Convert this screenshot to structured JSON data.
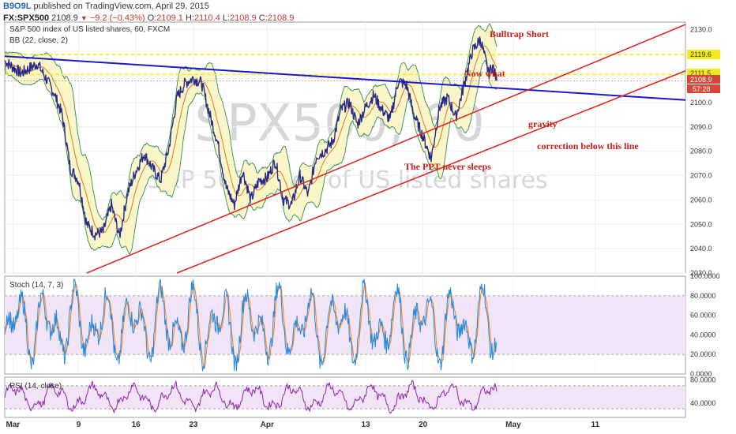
{
  "header": {
    "user": "B9O9L",
    "published": "published on TradingView.com, April 29, 2015",
    "symbol": "FX:SPX500",
    "last": "2108.9",
    "change": "−9.2 (−0.43%)",
    "o_label": "O:",
    "o_value": "2109.1",
    "h_label": "H:",
    "h_value": "2110.4",
    "l_label": "L:",
    "l_value": "2108.9",
    "c_label": "C:",
    "c_value": "2108.9"
  },
  "panels": {
    "main_title": "S&P 500 index of US listed shares, 60, FXCM",
    "bb_title": "BB (22, close, 2)",
    "stoch_title": "Stoch (14, 7, 3)",
    "rsi_title": "RSI (14, close)"
  },
  "watermark": {
    "symbol": "SPX500, 60",
    "description": "S&P 500 index of US listed shares"
  },
  "annotations": {
    "bulltrap": "Bulltrap Short",
    "now_what": "Now what",
    "gravity": "gravity",
    "correction": "correction below this line",
    "ppt": "The PPT never sleeps"
  },
  "price_labels": {
    "level_high": "2119.6",
    "level_mid": "2111.5",
    "last": "2108.9",
    "countdown": "57:28"
  },
  "colors": {
    "price": "#2a2a8a",
    "bb_band": "#2e8b57",
    "bb_fill": "#fbf6c8",
    "bb_basis": "#d2691e",
    "trendline_blue": "#1a1acc",
    "trendline_red": "#e0201a",
    "level_yellow": "#f2ea1a",
    "stoch_k": "#1e88e5",
    "stoch_d": "#ff7f0e",
    "osc_fill": "#f1e4f6",
    "rsi": "#8e24aa",
    "annotation": "#cc1f1a"
  },
  "chart_data": [
    {
      "type": "line",
      "title": "S&P 500 index of US listed shares, 60, FXCM",
      "x_ticks": [
        "Mar",
        "9",
        "16",
        "23",
        "Apr",
        "13",
        "20",
        "May",
        "11"
      ],
      "x_tick_days": [
        1,
        9,
        16,
        23,
        32,
        44,
        51,
        62,
        72
      ],
      "x_range_days": [
        0,
        83
      ],
      "ylim": [
        2030,
        2133
      ],
      "y_ticks": [
        2030,
        2040,
        2050,
        2060,
        2070,
        2080,
        2090,
        2100,
        2110,
        2120,
        2130
      ],
      "y_tick_labels": [
        "2030.0",
        "2040.0",
        "2050.0",
        "2060.0",
        "2070.0",
        "2080.0",
        "2090.0",
        "2100.0",
        "2110.0",
        "2120.0",
        "2130.0"
      ],
      "series": [
        {
          "role": "close",
          "x": [
            0,
            2,
            4,
            6,
            7,
            8,
            9,
            10,
            11,
            12,
            13,
            14,
            15,
            16,
            17,
            18,
            19,
            20,
            21,
            22,
            23,
            24,
            25,
            26,
            27,
            28,
            29,
            30,
            31,
            32,
            33,
            34,
            35,
            36,
            37,
            38,
            39,
            40,
            41,
            42,
            43,
            44,
            45,
            46,
            47,
            48,
            49,
            50,
            51,
            52,
            53,
            54,
            55,
            56,
            57,
            58,
            59,
            59.5,
            60
          ],
          "values": [
            2117,
            2112,
            2116,
            2104,
            2095,
            2073,
            2068,
            2050,
            2046,
            2047,
            2058,
            2045,
            2063,
            2072,
            2079,
            2073,
            2068,
            2081,
            2102,
            2108,
            2110,
            2108,
            2095,
            2083,
            2065,
            2058,
            2072,
            2060,
            2068,
            2069,
            2076,
            2060,
            2058,
            2070,
            2062,
            2078,
            2080,
            2084,
            2097,
            2100,
            2091,
            2098,
            2103,
            2097,
            2093,
            2109,
            2107,
            2094,
            2086,
            2077,
            2098,
            2102,
            2094,
            2107,
            2121,
            2126,
            2112,
            2115,
            2108.9
          ]
        }
      ],
      "bollinger": {
        "period": 22,
        "source": "close",
        "mult": 2
      },
      "trendlines": [
        {
          "name": "blue",
          "points": [
            [
              0,
              2119
            ],
            [
              83,
              2101
            ]
          ]
        },
        {
          "name": "red upper",
          "points": [
            [
              10,
              2030
            ],
            [
              83,
              2132
            ]
          ]
        },
        {
          "name": "red lower",
          "points": [
            [
              21,
              2030
            ],
            [
              83,
              2113
            ]
          ]
        }
      ],
      "levels": [
        2119.6,
        2111.5
      ]
    },
    {
      "type": "line",
      "title": "Stoch (14, 7, 3)",
      "ylim": [
        0,
        100
      ],
      "y_ticks": [
        0,
        20,
        40,
        60,
        80,
        100
      ],
      "y_tick_labels": [
        "0.0000",
        "20.0000",
        "40.0000",
        "60.0000",
        "80.0000",
        "100.0000"
      ],
      "bands": [
        20,
        80
      ]
    },
    {
      "type": "line",
      "title": "RSI (14, close)",
      "ylim": [
        15,
        85
      ],
      "y_ticks": [
        40,
        80
      ],
      "y_tick_labels": [
        "40.0000",
        "80.0000"
      ],
      "bands": [
        30,
        70
      ]
    }
  ]
}
